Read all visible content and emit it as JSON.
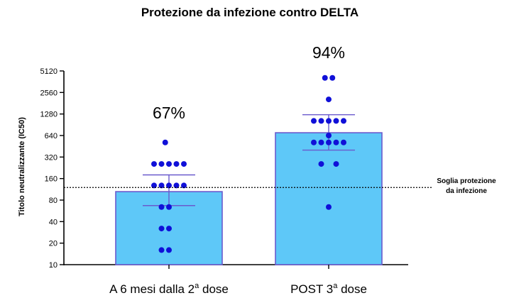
{
  "chart_data": {
    "type": "bar",
    "title": "Protezione da infezione contro DELTA",
    "ylabel": "Titolo neutralizzante (IC50)",
    "xlabel": "",
    "y_scale": "log2",
    "ylim": [
      10,
      5120
    ],
    "y_ticks": [
      "10",
      "20",
      "40",
      "80",
      "160",
      "320",
      "640",
      "1280",
      "2560",
      "5120"
    ],
    "grid": false,
    "colors": {
      "bar_fill": "#5ec8f8",
      "bar_stroke": "#6a5acd",
      "points": "#1010d8",
      "text": "#000000"
    },
    "threshold": {
      "value": 120,
      "label_line1": "Soglia protezione",
      "label_line2": "da infezione"
    },
    "categories": [
      {
        "label_prefix": "A 6 mesi dalla 2",
        "label_sup": "a",
        "label_suffix": " dose",
        "value": 105,
        "error_low": 67,
        "error_high": 180,
        "percent_label": "67%",
        "points": [
          {
            "dx": -0.5,
            "y": 512
          },
          {
            "dx": -2,
            "y": 256
          },
          {
            "dx": -1,
            "y": 256
          },
          {
            "dx": 0,
            "y": 256
          },
          {
            "dx": 1,
            "y": 256
          },
          {
            "dx": 2,
            "y": 256
          },
          {
            "dx": -2,
            "y": 128
          },
          {
            "dx": -1,
            "y": 128
          },
          {
            "dx": 0,
            "y": 128
          },
          {
            "dx": 1,
            "y": 128
          },
          {
            "dx": 2,
            "y": 128
          },
          {
            "dx": -1,
            "y": 64
          },
          {
            "dx": 0,
            "y": 64
          },
          {
            "dx": -1,
            "y": 32
          },
          {
            "dx": 0,
            "y": 32
          },
          {
            "dx": -1,
            "y": 16
          },
          {
            "dx": 0,
            "y": 16
          }
        ]
      },
      {
        "label_prefix": "POST 3",
        "label_sup": "a",
        "label_suffix": " dose",
        "value": 700,
        "error_low": 400,
        "error_high": 1250,
        "percent_label": "94%",
        "points": [
          {
            "dx": -0.5,
            "y": 4096
          },
          {
            "dx": 0.5,
            "y": 4096
          },
          {
            "dx": 0,
            "y": 2048
          },
          {
            "dx": -2,
            "y": 1024
          },
          {
            "dx": -1,
            "y": 1024
          },
          {
            "dx": 0,
            "y": 1024
          },
          {
            "dx": 1,
            "y": 1024
          },
          {
            "dx": 2,
            "y": 1024
          },
          {
            "dx": 0,
            "y": 640
          },
          {
            "dx": -2,
            "y": 512
          },
          {
            "dx": -1,
            "y": 512
          },
          {
            "dx": 0,
            "y": 512
          },
          {
            "dx": 1,
            "y": 512
          },
          {
            "dx": 2,
            "y": 512
          },
          {
            "dx": -1,
            "y": 256
          },
          {
            "dx": 1,
            "y": 256
          },
          {
            "dx": 0,
            "y": 64
          }
        ]
      }
    ]
  }
}
